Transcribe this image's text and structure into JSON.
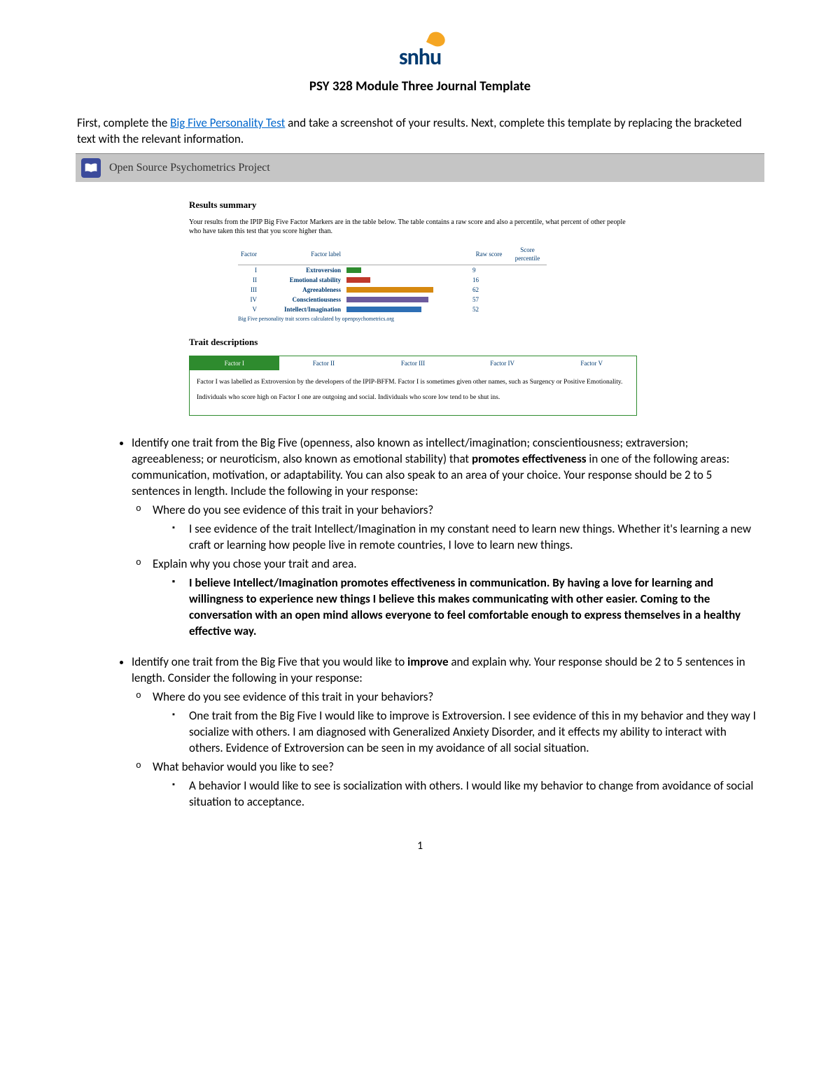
{
  "logo": {
    "text": "snhu"
  },
  "title": "PSY 328 Module Three Journal Template",
  "intro_prefix": "First, complete the ",
  "intro_link": "Big Five Personality Test",
  "intro_suffix": " and take a screenshot of your results. Next, complete this template by replacing the bracketed text with the relevant information.",
  "banner": "Open Source Psychometrics Project",
  "results": {
    "heading": "Results summary",
    "desc": "Your results from the IPIP Big Five Factor Markers are in the table below. The table contains a raw score and also a percentile, what percent of other people who have taken this test that you score higher than.",
    "headers": {
      "factor": "Factor",
      "label": "Factor label",
      "raw": "Raw score",
      "pct": "Score percentile"
    },
    "rows": [
      {
        "num": "I",
        "label": "Extroversion",
        "color": "#2e8b2e",
        "width_pct": 12,
        "raw": "9",
        "pct": ""
      },
      {
        "num": "II",
        "label": "Emotional stability",
        "color": "#c0392b",
        "width_pct": 20,
        "raw": "16",
        "pct": ""
      },
      {
        "num": "III",
        "label": "Agreeableness",
        "color": "#d68910",
        "width_pct": 72,
        "raw": "62",
        "pct": ""
      },
      {
        "num": "IV",
        "label": "Conscientiousness",
        "color": "#6c5b9e",
        "width_pct": 68,
        "raw": "57",
        "pct": ""
      },
      {
        "num": "V",
        "label": "Intellect/Imagination",
        "color": "#2e6fb5",
        "width_pct": 62,
        "raw": "52",
        "pct": ""
      }
    ],
    "footnote": "Big Five personality trait scores calculated by openpsychometrics.org"
  },
  "traits": {
    "heading": "Trait descriptions",
    "tabs": [
      "Factor I",
      "Factor II",
      "Factor III",
      "Factor IV",
      "Factor V"
    ],
    "content_p1": "Factor I was labelled as Extroversion by the developers of the IPIP-BFFM. Factor I is sometimes given other names, such as Surgency or Positive Emotionality.",
    "content_p2": "Individuals who score high on Factor I one are outgoing and social. Individuals who score low tend to be shut ins."
  },
  "bullet1": {
    "main_a": "Identify one trait from the Big Five (openness, also known as intellect/imagination; conscientiousness; extraversion; agreeableness; or neuroticism, also known as emotional stability) that ",
    "main_bold1": "promotes effectiveness",
    "main_b": " in one of the following areas: communication, motivation, or adaptability. You can also speak to an area of your choice. Your response should be 2 to 5 sentences in length. Include the following in your response:",
    "q1": "Where do you see evidence of this trait in your behaviors?",
    "a1": "I see evidence of the trait Intellect/Imagination in my constant need to learn new things.  Whether it's learning a new craft or learning how people live in remote countries, I love to learn new things.",
    "q2": "Explain why you chose your trait and area.",
    "a2": "I believe Intellect/Imagination promotes effectiveness in communication.  By having a love for learning and willingness to experience new things I believe this makes communicating with other easier.  Coming to the conversation with an open mind allows everyone to feel comfortable enough to express themselves in a healthy effective way."
  },
  "bullet2": {
    "main_a": "Identify one trait from the Big Five that you would like to ",
    "main_bold1": "improve",
    "main_b": " and explain why. Your response should be 2 to 5 sentences in length. Consider the following in your response:",
    "q1": "Where do you see evidence of this trait in your behaviors?",
    "a1": "One trait from the Big Five I would like to improve is Extroversion.  I see evidence of this in my behavior and they way I socialize with others.  I am diagnosed with Generalized Anxiety Disorder, and it effects my ability to interact with others.  Evidence of Extroversion can be seen in my avoidance of all social situation.",
    "q2": "What behavior would you like to see?",
    "a2": "A behavior I would like to see is socialization with others.  I would like my behavior to change from avoidance of social situation to acceptance."
  },
  "page_number": "1"
}
